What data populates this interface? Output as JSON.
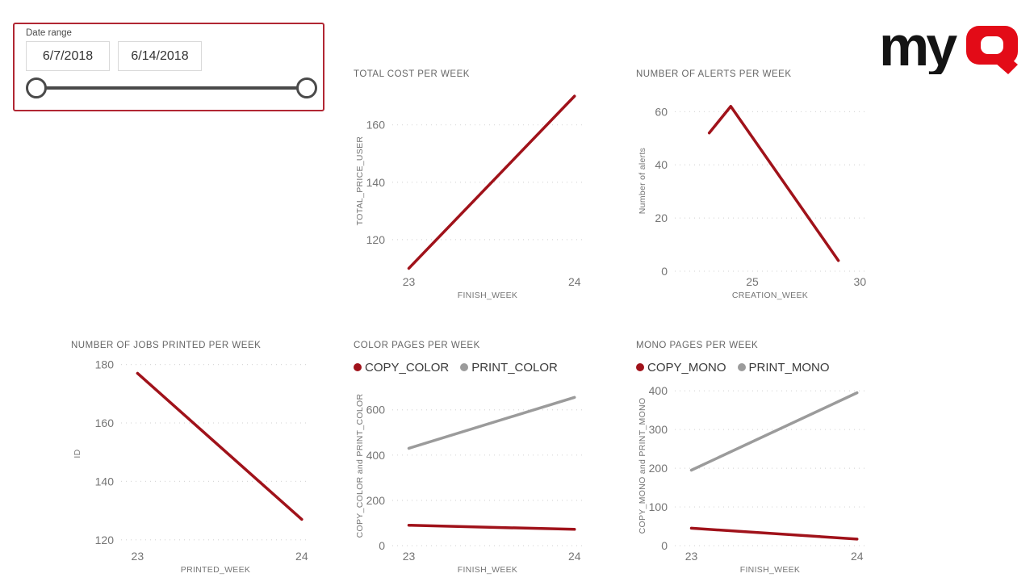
{
  "app": {
    "background": "#ffffff"
  },
  "slicer": {
    "label": "Date range",
    "start_date": "6/7/2018",
    "end_date": "6/14/2018",
    "border_color": "#b12733"
  },
  "logo": {
    "text_my": "my",
    "text_q": "Q",
    "my_color": "#141414",
    "q_color": "#e30b17"
  },
  "colors": {
    "line_red": "#a0121a",
    "line_gray": "#9b9b9b",
    "title_gray": "#666666",
    "axis_gray": "#757575",
    "grid": "#d9d9d9"
  },
  "chart_data": [
    {
      "type": "line",
      "id": "total-cost-per-week",
      "title": "TOTAL COST PER WEEK",
      "xlabel": "FINISH_WEEK",
      "ylabel": "TOTAL_PRICE_USER",
      "x_ticks": [
        23,
        24
      ],
      "x_domain": [
        22.9,
        24.05
      ],
      "y_ticks": [
        120,
        140,
        160
      ],
      "y_domain": [
        109,
        172
      ],
      "grid": true,
      "legend": [],
      "series": [
        {
          "name": "TOTAL_PRICE_USER",
          "color": "#a0121a",
          "points": [
            [
              23,
              110
            ],
            [
              24,
              170
            ]
          ]
        }
      ]
    },
    {
      "type": "line",
      "id": "number-of-alerts-per-week",
      "title": "NUMBER OF ALERTS PER WEEK",
      "xlabel": "CREATION_WEEK",
      "ylabel": "Number of alerts",
      "x_ticks": [
        25,
        30
      ],
      "x_domain": [
        21.4,
        30.25
      ],
      "y_ticks": [
        0,
        20,
        40,
        60
      ],
      "y_domain": [
        0,
        68
      ],
      "grid": true,
      "legend": [],
      "series": [
        {
          "name": "Number of alerts",
          "color": "#a0121a",
          "points": [
            [
              23,
              52
            ],
            [
              24,
              62
            ],
            [
              29,
              4
            ]
          ]
        }
      ]
    },
    {
      "type": "line",
      "id": "number-of-jobs-printed-per-week",
      "title": "NUMBER OF JOBS PRINTED PER WEEK",
      "xlabel": "PRINTED_WEEK",
      "ylabel": "ID",
      "x_ticks": [
        23,
        24
      ],
      "x_domain": [
        22.9,
        24.05
      ],
      "y_ticks": [
        120,
        140,
        160,
        180
      ],
      "y_domain": [
        118,
        181
      ],
      "grid": true,
      "legend": [],
      "series": [
        {
          "name": "ID",
          "color": "#a0121a",
          "points": [
            [
              23,
              177
            ],
            [
              24,
              127
            ]
          ]
        }
      ]
    },
    {
      "type": "line",
      "id": "color-pages-per-week",
      "title": "COLOR PAGES PER WEEK",
      "xlabel": "FINISH_WEEK",
      "ylabel": "COPY_COLOR and PRINT_COLOR",
      "x_ticks": [
        23,
        24
      ],
      "x_domain": [
        22.9,
        24.05
      ],
      "y_ticks": [
        0,
        200,
        400,
        600
      ],
      "y_domain": [
        0,
        706
      ],
      "grid": true,
      "legend": [
        {
          "label": "COPY_COLOR",
          "color": "#a0121a"
        },
        {
          "label": "PRINT_COLOR",
          "color": "#9b9b9b"
        }
      ],
      "series": [
        {
          "name": "COPY_COLOR",
          "color": "#a0121a",
          "points": [
            [
              23,
              90
            ],
            [
              24,
              72
            ]
          ]
        },
        {
          "name": "PRINT_COLOR",
          "color": "#9b9b9b",
          "points": [
            [
              23,
              430
            ],
            [
              24,
              655
            ]
          ]
        }
      ]
    },
    {
      "type": "line",
      "id": "mono-pages-per-week",
      "title": "MONO PAGES PER WEEK",
      "xlabel": "FINISH_WEEK",
      "ylabel": "COPY_MONO and PRINT_MONO",
      "x_ticks": [
        23,
        24
      ],
      "x_domain": [
        22.9,
        24.05
      ],
      "y_ticks": [
        0,
        100,
        200,
        300,
        400
      ],
      "y_domain": [
        0,
        413
      ],
      "grid": true,
      "legend": [
        {
          "label": "COPY_MONO",
          "color": "#a0121a"
        },
        {
          "label": "PRINT_MONO",
          "color": "#9b9b9b"
        }
      ],
      "series": [
        {
          "name": "COPY_MONO",
          "color": "#a0121a",
          "points": [
            [
              23,
              45
            ],
            [
              24,
              17
            ]
          ]
        },
        {
          "name": "PRINT_MONO",
          "color": "#9b9b9b",
          "points": [
            [
              23,
              195
            ],
            [
              24,
              395
            ]
          ]
        }
      ]
    }
  ]
}
